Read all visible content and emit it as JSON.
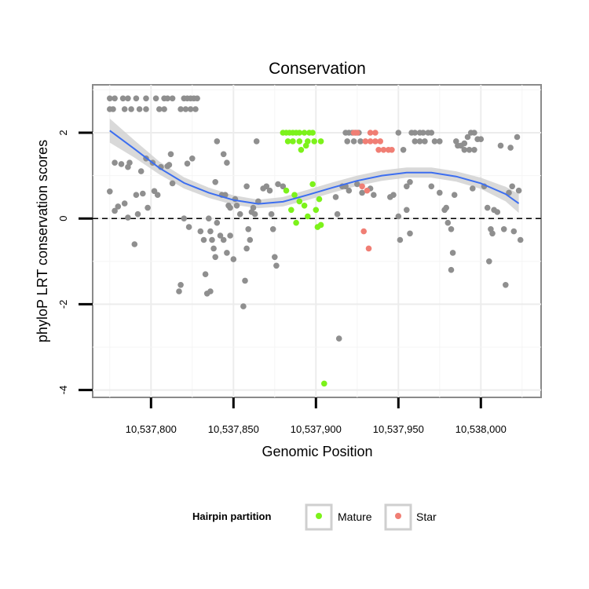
{
  "chart_data": {
    "type": "scatter",
    "title": "Conservation",
    "xlabel": "Genomic Position",
    "ylabel": "phyloP LRT conservation scores",
    "xlim": [
      10537764,
      10538030
    ],
    "ylim": [
      -4.2,
      3.1
    ],
    "x_ticks": [
      10537800,
      10537850,
      10537900,
      10537950,
      10538000
    ],
    "x_tick_labels": [
      "10,537,800",
      "10,537,850",
      "10,537,900",
      "10,537,950",
      "10,538,000"
    ],
    "y_ticks": [
      -4,
      -2,
      0,
      2
    ],
    "y_tick_labels": [
      "-4",
      "-2",
      "0",
      "2"
    ],
    "reference_line": {
      "y": 0,
      "style": "dashed"
    },
    "legend": {
      "title": "Hairpin partition",
      "position": "bottom",
      "entries": [
        {
          "label": "Mature",
          "color": "#7CF21A"
        },
        {
          "label": "Star",
          "color": "#F07E74"
        }
      ]
    },
    "colors": {
      "other": "#8F8F8F",
      "mature": "#7CF21A",
      "star": "#F07E74",
      "smooth": "#3C6EF0",
      "band": "#D2D2D2"
    },
    "series": [
      {
        "name": "Other",
        "points": [
          [
            10537775,
            2.8
          ],
          [
            10537778,
            2.8
          ],
          [
            10537783,
            2.8
          ],
          [
            10537786,
            2.8
          ],
          [
            10537791,
            2.8
          ],
          [
            10537797,
            2.8
          ],
          [
            10537803,
            2.8
          ],
          [
            10537808,
            2.8
          ],
          [
            10537810,
            2.8
          ],
          [
            10537813,
            2.8
          ],
          [
            10537820,
            2.8
          ],
          [
            10537822,
            2.8
          ],
          [
            10537824,
            2.8
          ],
          [
            10537826,
            2.8
          ],
          [
            10537828,
            2.8
          ],
          [
            10537775,
            2.55
          ],
          [
            10537777,
            2.55
          ],
          [
            10537784,
            2.55
          ],
          [
            10537788,
            2.55
          ],
          [
            10537793,
            2.55
          ],
          [
            10537797,
            2.55
          ],
          [
            10537805,
            2.55
          ],
          [
            10537808,
            2.55
          ],
          [
            10537818,
            2.55
          ],
          [
            10537821,
            2.55
          ],
          [
            10537824,
            2.55
          ],
          [
            10537827,
            2.55
          ],
          [
            10537775,
            0.63
          ],
          [
            10537778,
            0.18
          ],
          [
            10537780,
            0.28
          ],
          [
            10537778,
            1.3
          ],
          [
            10537782,
            1.27
          ],
          [
            10537786,
            1.2
          ],
          [
            10537787,
            1.3
          ],
          [
            10537784,
            0.35
          ],
          [
            10537786,
            0.02
          ],
          [
            10537790,
            -0.6
          ],
          [
            10537791,
            0.55
          ],
          [
            10537792,
            0.1
          ],
          [
            10537794,
            1.1
          ],
          [
            10537795,
            0.58
          ],
          [
            10537797,
            1.4
          ],
          [
            10537798,
            0.25
          ],
          [
            10537801,
            1.3
          ],
          [
            10537802,
            0.64
          ],
          [
            10537804,
            0.55
          ],
          [
            10537806,
            1.2
          ],
          [
            10537810,
            1.22
          ],
          [
            10537811,
            1.25
          ],
          [
            10537812,
            1.5
          ],
          [
            10537813,
            0.82
          ],
          [
            10537817,
            -1.7
          ],
          [
            10537818,
            -1.55
          ],
          [
            10537820,
            0.0
          ],
          [
            10537822,
            1.28
          ],
          [
            10537823,
            -0.2
          ],
          [
            10537825,
            1.4
          ],
          [
            10537830,
            -0.3
          ],
          [
            10537832,
            -0.5
          ],
          [
            10537835,
            0.0
          ],
          [
            10537836,
            -0.3
          ],
          [
            10537837,
            -0.5
          ],
          [
            10537838,
            -0.7
          ],
          [
            10537840,
            -0.1
          ],
          [
            10537839,
            0.85
          ],
          [
            10537840,
            1.8
          ],
          [
            10537843,
            0.55
          ],
          [
            10537844,
            1.5
          ],
          [
            10537845,
            0.55
          ],
          [
            10537846,
            1.3
          ],
          [
            10537847,
            0.3
          ],
          [
            10537848,
            0.25
          ],
          [
            10537833,
            -1.3
          ],
          [
            10537834,
            -1.75
          ],
          [
            10537836,
            -1.7
          ],
          [
            10537839,
            -0.9
          ],
          [
            10537842,
            -0.4
          ],
          [
            10537844,
            -0.5
          ],
          [
            10537846,
            -0.8
          ],
          [
            10537848,
            -0.4
          ],
          [
            10537850,
            -0.95
          ],
          [
            10537851,
            0.45
          ],
          [
            10537852,
            0.3
          ],
          [
            10537854,
            0.1
          ],
          [
            10537856,
            -2.05
          ],
          [
            10537857,
            -1.45
          ],
          [
            10537858,
            -0.7
          ],
          [
            10537859,
            -0.25
          ],
          [
            10537860,
            -0.5
          ],
          [
            10537858,
            0.75
          ],
          [
            10537861,
            0.15
          ],
          [
            10537862,
            0.25
          ],
          [
            10537863,
            0.1
          ],
          [
            10537864,
            1.8
          ],
          [
            10537865,
            0.4
          ],
          [
            10537868,
            0.7
          ],
          [
            10537870,
            0.75
          ],
          [
            10537872,
            0.65
          ],
          [
            10537873,
            0.1
          ],
          [
            10537874,
            -0.25
          ],
          [
            10537875,
            -0.9
          ],
          [
            10537876,
            -1.1
          ],
          [
            10537877,
            0.8
          ],
          [
            10537880,
            0.75
          ],
          [
            10537912,
            0.5
          ],
          [
            10537913,
            0.1
          ],
          [
            10537914,
            -2.8
          ],
          [
            10537916,
            0.75
          ],
          [
            10537918,
            2.0
          ],
          [
            10537920,
            2.0
          ],
          [
            10537922,
            2.0
          ],
          [
            10537924,
            2.0
          ],
          [
            10537926,
            2.0
          ],
          [
            10537919,
            1.8
          ],
          [
            10537923,
            1.8
          ],
          [
            10537927,
            1.8
          ],
          [
            10537918,
            0.75
          ],
          [
            10537920,
            0.65
          ],
          [
            10537925,
            0.8
          ],
          [
            10537928,
            0.6
          ],
          [
            10537933,
            0.7
          ],
          [
            10537935,
            0.55
          ],
          [
            10537945,
            0.5
          ],
          [
            10537947,
            0.55
          ],
          [
            10537950,
            2.0
          ],
          [
            10537953,
            1.6
          ],
          [
            10537950,
            0.05
          ],
          [
            10537951,
            -0.5
          ],
          [
            10537955,
            0.75
          ],
          [
            10537957,
            0.85
          ],
          [
            10537955,
            0.2
          ],
          [
            10537957,
            -0.35
          ],
          [
            10537958,
            2.0
          ],
          [
            10537960,
            2.0
          ],
          [
            10537963,
            2.0
          ],
          [
            10537965,
            2.0
          ],
          [
            10537960,
            1.8
          ],
          [
            10537963,
            1.8
          ],
          [
            10537966,
            1.8
          ],
          [
            10537968,
            2.0
          ],
          [
            10537970,
            2.0
          ],
          [
            10537972,
            1.8
          ],
          [
            10537975,
            1.8
          ],
          [
            10537970,
            0.75
          ],
          [
            10537975,
            0.6
          ],
          [
            10537978,
            0.2
          ],
          [
            10537979,
            0.25
          ],
          [
            10537980,
            -0.1
          ],
          [
            10537982,
            -0.25
          ],
          [
            10537983,
            -0.8
          ],
          [
            10537982,
            -1.2
          ],
          [
            10537984,
            0.55
          ],
          [
            10537985,
            1.8
          ],
          [
            10537986,
            1.7
          ],
          [
            10537988,
            1.7
          ],
          [
            10537990,
            1.75
          ],
          [
            10537992,
            1.9
          ],
          [
            10537994,
            2.0
          ],
          [
            10537996,
            2.0
          ],
          [
            10537990,
            1.6
          ],
          [
            10537993,
            1.6
          ],
          [
            10537996,
            1.6
          ],
          [
            10537998,
            1.85
          ],
          [
            10538000,
            1.85
          ],
          [
            10537995,
            0.7
          ],
          [
            10538002,
            0.75
          ],
          [
            10538004,
            0.25
          ],
          [
            10538006,
            -0.25
          ],
          [
            10538007,
            -0.35
          ],
          [
            10538005,
            -1.0
          ],
          [
            10538008,
            0.2
          ],
          [
            10538010,
            0.15
          ],
          [
            10538012,
            1.7
          ],
          [
            10538014,
            -0.25
          ],
          [
            10538015,
            -1.55
          ],
          [
            10538017,
            0.6
          ],
          [
            10538018,
            1.65
          ],
          [
            10538019,
            0.75
          ],
          [
            10538020,
            -0.3
          ],
          [
            10538022,
            1.9
          ],
          [
            10538023,
            0.65
          ],
          [
            10538024,
            -0.5
          ]
        ]
      },
      {
        "name": "Mature",
        "points": [
          [
            10537880,
            2.0
          ],
          [
            10537882,
            2.0
          ],
          [
            10537884,
            2.0
          ],
          [
            10537886,
            2.0
          ],
          [
            10537888,
            2.0
          ],
          [
            10537890,
            2.0
          ],
          [
            10537893,
            2.0
          ],
          [
            10537896,
            2.0
          ],
          [
            10537898,
            2.0
          ],
          [
            10537883,
            1.8
          ],
          [
            10537886,
            1.8
          ],
          [
            10537890,
            1.8
          ],
          [
            10537895,
            1.8
          ],
          [
            10537899,
            1.8
          ],
          [
            10537903,
            1.8
          ],
          [
            10537891,
            1.6
          ],
          [
            10537894,
            1.7
          ],
          [
            10537882,
            0.65
          ],
          [
            10537885,
            0.2
          ],
          [
            10537887,
            0.55
          ],
          [
            10537888,
            -0.1
          ],
          [
            10537890,
            0.4
          ],
          [
            10537893,
            0.3
          ],
          [
            10537895,
            0.05
          ],
          [
            10537898,
            0.8
          ],
          [
            10537900,
            0.2
          ],
          [
            10537901,
            -0.2
          ],
          [
            10537903,
            -0.15
          ],
          [
            10537902,
            0.45
          ],
          [
            10537905,
            -3.85
          ]
        ]
      },
      {
        "name": "Star",
        "points": [
          [
            10537923,
            2.0
          ],
          [
            10537925,
            2.0
          ],
          [
            10537933,
            2.0
          ],
          [
            10537936,
            2.0
          ],
          [
            10537930,
            1.8
          ],
          [
            10537933,
            1.8
          ],
          [
            10537936,
            1.8
          ],
          [
            10537939,
            1.8
          ],
          [
            10537938,
            1.6
          ],
          [
            10537941,
            1.6
          ],
          [
            10537944,
            1.6
          ],
          [
            10537946,
            1.6
          ],
          [
            10537928,
            0.75
          ],
          [
            10537931,
            0.65
          ],
          [
            10537929,
            -0.3
          ],
          [
            10537932,
            -0.7
          ]
        ]
      }
    ],
    "smooth": {
      "x": [
        10537775,
        10537790,
        10537805,
        10537820,
        10537835,
        10537850,
        10537865,
        10537880,
        10537895,
        10537910,
        10537925,
        10537940,
        10537955,
        10537970,
        10537985,
        10538000,
        10538015,
        10538023
      ],
      "y": [
        2.05,
        1.62,
        1.18,
        0.83,
        0.6,
        0.43,
        0.34,
        0.39,
        0.55,
        0.72,
        0.88,
        1.0,
        1.07,
        1.07,
        0.98,
        0.82,
        0.57,
        0.35
      ],
      "se": [
        0.28,
        0.2,
        0.15,
        0.13,
        0.12,
        0.11,
        0.1,
        0.11,
        0.12,
        0.12,
        0.12,
        0.12,
        0.12,
        0.12,
        0.12,
        0.13,
        0.17,
        0.22
      ]
    }
  }
}
